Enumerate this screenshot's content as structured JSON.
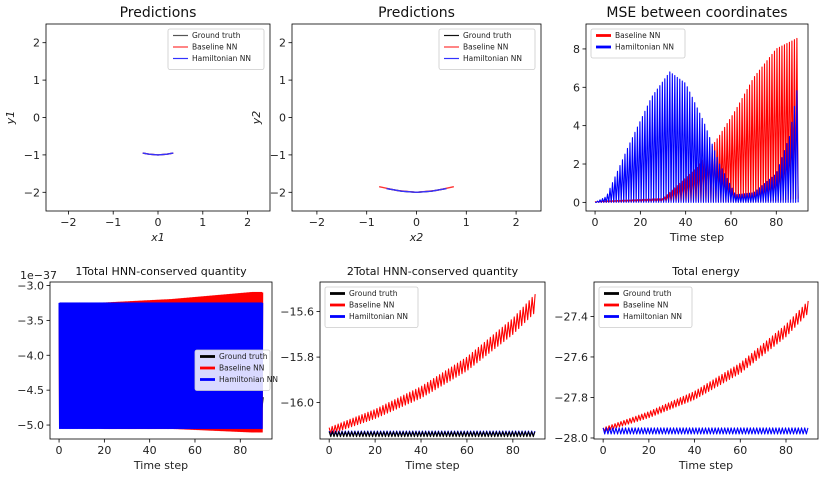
{
  "chart_data": [
    {
      "type": "line",
      "title": "Predictions",
      "xlabel": "x1",
      "ylabel": "y1",
      "xlim": [
        -2.5,
        2.5
      ],
      "ylim": [
        -2.5,
        2.5
      ],
      "xticks": [
        -2,
        -1,
        0,
        1,
        2
      ],
      "yticks": [
        -2,
        -1,
        0,
        1,
        2
      ],
      "legend": [
        "Ground truth",
        "Baseline NN",
        "Hamiltonian NN"
      ],
      "legend_position": "top-right",
      "series": [
        {
          "name": "Ground truth",
          "color": "#555555",
          "x": [
            -0.34,
            -0.2,
            0,
            0.2,
            0.34
          ],
          "y": [
            -0.95,
            -0.98,
            -1.0,
            -0.98,
            -0.95
          ]
        },
        {
          "name": "Baseline NN",
          "color": "#ff3333",
          "x": [
            -0.34,
            -0.2,
            0,
            0.2,
            0.34
          ],
          "y": [
            -0.95,
            -0.98,
            -1.0,
            -0.98,
            -0.95
          ]
        },
        {
          "name": "Hamiltonian NN",
          "color": "#3333ff",
          "x": [
            -0.34,
            -0.2,
            0,
            0.2,
            0.34
          ],
          "y": [
            -0.95,
            -0.98,
            -1.0,
            -0.98,
            -0.95
          ]
        }
      ]
    },
    {
      "type": "line",
      "title": "Predictions",
      "xlabel": "x2",
      "ylabel": "y2",
      "xlim": [
        -2.5,
        2.5
      ],
      "ylim": [
        -2.5,
        2.5
      ],
      "xticks": [
        -2,
        -1,
        0,
        1,
        2
      ],
      "yticks": [
        -2,
        -1,
        0,
        1,
        2
      ],
      "legend": [
        "Ground truth",
        "Baseline NN",
        "Hamiltonian NN"
      ],
      "legend_position": "top-right",
      "series": [
        {
          "name": "Ground truth",
          "color": "#111111",
          "x": [
            -0.6,
            -0.3,
            0,
            0.3,
            0.6
          ],
          "y": [
            -1.9,
            -1.97,
            -2.0,
            -1.97,
            -1.9
          ]
        },
        {
          "name": "Baseline NN",
          "color": "#ff3333",
          "x": [
            -0.75,
            -0.4,
            0,
            0.4,
            0.75
          ],
          "y": [
            -1.85,
            -1.95,
            -2.0,
            -1.95,
            -1.85
          ]
        },
        {
          "name": "Hamiltonian NN",
          "color": "#3333ff",
          "x": [
            -0.6,
            -0.3,
            0,
            0.3,
            0.6
          ],
          "y": [
            -1.9,
            -1.97,
            -2.0,
            -1.97,
            -1.9
          ]
        }
      ]
    },
    {
      "type": "line",
      "title": "MSE between coordinates",
      "xlabel": "Time step",
      "ylabel": "",
      "xlim": [
        -4,
        94
      ],
      "ylim": [
        -0.45,
        9.3
      ],
      "xticks": [
        0,
        20,
        40,
        60,
        80
      ],
      "yticks": [
        0,
        2,
        4,
        6,
        8
      ],
      "legend": [
        "Baseline NN",
        "Hamiltonian NN"
      ],
      "legend_position": "top-left",
      "series": [
        {
          "name": "Baseline NN",
          "color": "#ff0000",
          "oscillation": 1.1,
          "upper_x": [
            0,
            30,
            45,
            55,
            62,
            70,
            80,
            90
          ],
          "upper_y": [
            0.05,
            0.2,
            1.8,
            3.5,
            4.8,
            6.5,
            8.0,
            8.6
          ],
          "lower_x": [
            0,
            30,
            45,
            55,
            62,
            70,
            80,
            90
          ],
          "lower_y": [
            0.0,
            0.05,
            0.05,
            0.05,
            0.05,
            0.05,
            0.1,
            0.2
          ]
        },
        {
          "name": "Hamiltonian NN",
          "color": "#0000ff",
          "oscillation": 1.1,
          "upper_x": [
            0,
            5,
            15,
            25,
            33,
            40,
            48,
            55,
            62,
            70,
            80,
            86,
            90
          ],
          "upper_y": [
            0.0,
            0.3,
            3.0,
            5.5,
            6.8,
            6.2,
            4.2,
            2.0,
            0.4,
            0.5,
            1.5,
            3.5,
            6.5
          ],
          "lower_x": [
            0,
            90
          ],
          "lower_y": [
            0.0,
            0.0
          ]
        }
      ]
    },
    {
      "type": "line",
      "title": "1Total HNN-conserved quantity",
      "scale_note": "1e-37",
      "xlabel": "Time step",
      "ylabel": "",
      "xlim": [
        -4,
        94
      ],
      "ylim": [
        -5.2,
        -2.95
      ],
      "xticks": [
        0,
        20,
        40,
        60,
        80
      ],
      "yticks": [
        -5.0,
        -4.5,
        -4.0,
        -3.5,
        -3.0
      ],
      "ytick_labels": [
        "-5.0",
        "-4.5",
        "-4.0",
        "-3.5",
        "-3.0"
      ],
      "legend": [
        "Ground truth",
        "Baseline NN",
        "Hamiltonian NN"
      ],
      "legend_position": "center-right",
      "series": [
        {
          "name": "Ground truth",
          "color": "#000000",
          "x": [
            88,
            89,
            90
          ],
          "y": [
            -4.4,
            -4.9,
            -4.6
          ]
        },
        {
          "name": "Baseline NN",
          "color": "#ff0000",
          "oscillation": 0.42,
          "upper_x": [
            0,
            20,
            50,
            85,
            90
          ],
          "upper_y": [
            -3.3,
            -3.25,
            -3.2,
            -3.1,
            -3.1
          ],
          "lower_x": [
            0,
            20,
            50,
            85,
            90
          ],
          "lower_y": [
            -5.0,
            -5.05,
            -5.05,
            -5.1,
            -5.1
          ]
        },
        {
          "name": "Hamiltonian NN",
          "color": "#0000ff",
          "oscillation": 0.42,
          "upper_x": [
            0,
            90
          ],
          "upper_y": [
            -3.25,
            -3.25
          ],
          "lower_x": [
            0,
            90
          ],
          "lower_y": [
            -5.05,
            -5.05
          ]
        }
      ]
    },
    {
      "type": "line",
      "title": "2Total HNN-conserved quantity",
      "xlabel": "Time step",
      "ylabel": "",
      "xlim": [
        -4,
        94
      ],
      "ylim": [
        -16.16,
        -15.47
      ],
      "xticks": [
        0,
        20,
        40,
        60,
        80
      ],
      "yticks": [
        -16.0,
        -15.8,
        -15.6
      ],
      "ytick_labels": [
        "-16.0",
        "-15.8",
        "-15.6"
      ],
      "legend": [
        "Ground truth",
        "Baseline NN",
        "Hamiltonian NN"
      ],
      "legend_position": "top-left",
      "series": [
        {
          "name": "Baseline NN",
          "color": "#ff0000",
          "oscillation": 1.3,
          "upper_x": [
            0,
            20,
            40,
            60,
            80,
            90
          ],
          "upper_y": [
            -16.11,
            -16.03,
            -15.93,
            -15.8,
            -15.63,
            -15.52
          ],
          "lower_x": [
            0,
            20,
            40,
            60,
            80,
            90
          ],
          "lower_y": [
            -16.14,
            -16.07,
            -15.98,
            -15.86,
            -15.7,
            -15.6
          ]
        },
        {
          "name": "Hamiltonian NN",
          "color": "#0000ff",
          "oscillation": 1.4,
          "upper_x": [
            0,
            90
          ],
          "upper_y": [
            -16.125,
            -16.125
          ],
          "lower_x": [
            0,
            90
          ],
          "lower_y": [
            -16.145,
            -16.145
          ]
        },
        {
          "name": "Ground truth",
          "color": "#000000",
          "oscillation": 1.4,
          "upper_x": [
            0,
            90
          ],
          "upper_y": [
            -16.128,
            -16.128
          ],
          "lower_x": [
            0,
            90
          ],
          "lower_y": [
            -16.15,
            -16.15
          ]
        }
      ]
    },
    {
      "type": "line",
      "title": "Total energy",
      "xlabel": "Time step",
      "ylabel": "",
      "xlim": [
        -4,
        94
      ],
      "ylim": [
        -28.005,
        -27.23
      ],
      "xticks": [
        0,
        20,
        40,
        60,
        80
      ],
      "yticks": [
        -28.0,
        -27.8,
        -27.6,
        -27.4
      ],
      "ytick_labels": [
        "-28.0",
        "-27.8",
        "-27.6",
        "-27.4"
      ],
      "legend": [
        "Ground truth",
        "Baseline NN",
        "Hamiltonian NN"
      ],
      "legend_position": "top-left",
      "series": [
        {
          "name": "Baseline NN",
          "color": "#ff0000",
          "oscillation": 1.3,
          "upper_x": [
            0,
            20,
            40,
            60,
            80,
            90
          ],
          "upper_y": [
            -27.95,
            -27.87,
            -27.77,
            -27.63,
            -27.44,
            -27.32
          ],
          "lower_x": [
            0,
            20,
            40,
            60,
            80,
            90
          ],
          "lower_y": [
            -27.97,
            -27.9,
            -27.81,
            -27.68,
            -27.5,
            -27.38
          ]
        },
        {
          "name": "Hamiltonian NN",
          "color": "#0000ff",
          "oscillation": 1.4,
          "upper_x": [
            0,
            90
          ],
          "upper_y": [
            -27.95,
            -27.95
          ],
          "lower_x": [
            0,
            90
          ],
          "lower_y": [
            -27.98,
            -27.98
          ]
        }
      ]
    }
  ]
}
